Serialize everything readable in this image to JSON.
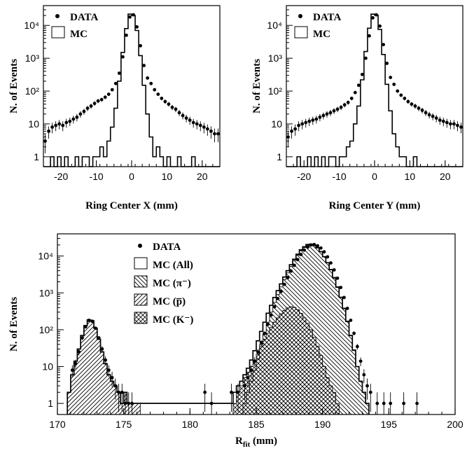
{
  "chart_data": [
    {
      "type": "histogram",
      "panel": "top-left",
      "xlabel": "Ring Center X (mm)",
      "ylabel": "N. of Events",
      "xlim": [
        -25,
        25
      ],
      "ylim_log": [
        0.5,
        40000
      ],
      "y_scale": "log",
      "xticks": [
        -20,
        -10,
        0,
        10,
        20
      ],
      "yticks": [
        {
          "value": 1,
          "label": "1"
        },
        {
          "value": 10,
          "label": "10"
        },
        {
          "value": 100,
          "label": "10²"
        },
        {
          "value": 1000,
          "label": "10³"
        },
        {
          "value": 10000,
          "label": "10⁴"
        }
      ],
      "legend": [
        {
          "symbol": "•",
          "label": "DATA"
        },
        {
          "symbol": "box",
          "label": "MC"
        }
      ],
      "series": [
        {
          "name": "DATA",
          "x": [
            -24.5,
            -23.5,
            -22.5,
            -21.5,
            -20.5,
            -19.5,
            -18.5,
            -17.5,
            -16.5,
            -15.5,
            -14.5,
            -13.5,
            -12.5,
            -11.5,
            -10.5,
            -9.5,
            -8.5,
            -7.5,
            -6.5,
            -5.5,
            -4.5,
            -3.5,
            -2.5,
            -1.5,
            -0.5,
            0.5,
            1.5,
            2.5,
            3.5,
            4.5,
            5.5,
            6.5,
            7.5,
            8.5,
            9.5,
            10.5,
            11.5,
            12.5,
            13.5,
            14.5,
            15.5,
            16.5,
            17.5,
            18.5,
            19.5,
            20.5,
            21.5,
            22.5,
            23.5,
            24.5
          ],
          "values": [
            3,
            6,
            8,
            9,
            10,
            9,
            11,
            12,
            14,
            16,
            20,
            24,
            30,
            35,
            42,
            50,
            55,
            65,
            80,
            110,
            170,
            350,
            1100,
            5000,
            18000,
            21000,
            9000,
            2400,
            600,
            250,
            170,
            110,
            80,
            60,
            48,
            40,
            32,
            28,
            22,
            18,
            15,
            13,
            11,
            10,
            9,
            8,
            7,
            6,
            5,
            5
          ]
        },
        {
          "name": "MC",
          "x": [
            -24.5,
            -23.5,
            -22.5,
            -21.5,
            -20.5,
            -19.5,
            -18.5,
            -17.5,
            -16.5,
            -15.5,
            -14.5,
            -13.5,
            -12.5,
            -11.5,
            -10.5,
            -9.5,
            -8.5,
            -7.5,
            -6.5,
            -5.5,
            -4.5,
            -3.5,
            -2.5,
            -1.5,
            -0.5,
            0.5,
            1.5,
            2.5,
            3.5,
            4.5,
            5.5,
            6.5,
            7.5,
            8.5,
            9.5,
            10.5,
            11.5,
            12.5,
            13.5,
            14.5,
            15.5,
            16.5,
            17.5,
            18.5,
            19.5,
            20.5,
            21.5,
            22.5,
            23.5,
            24.5
          ],
          "values": [
            0,
            0,
            1,
            0,
            1,
            0,
            1,
            0,
            0,
            1,
            0,
            1,
            1,
            0,
            1,
            1,
            2,
            1,
            3,
            8,
            30,
            200,
            1500,
            8000,
            22000,
            20000,
            7000,
            1200,
            150,
            20,
            4,
            1,
            2,
            1,
            0,
            1,
            0,
            0,
            1,
            0,
            0,
            0,
            1,
            0,
            0,
            0,
            0,
            0,
            0,
            0
          ]
        }
      ]
    },
    {
      "type": "histogram",
      "panel": "top-right",
      "xlabel": "Ring Center Y (mm)",
      "ylabel": "N. of Events",
      "xlim": [
        -25,
        25
      ],
      "ylim_log": [
        0.5,
        40000
      ],
      "y_scale": "log",
      "xticks": [
        -20,
        -10,
        0,
        10,
        20
      ],
      "yticks": [
        {
          "value": 1,
          "label": "1"
        },
        {
          "value": 10,
          "label": "10"
        },
        {
          "value": 100,
          "label": "10²"
        },
        {
          "value": 1000,
          "label": "10³"
        },
        {
          "value": 10000,
          "label": "10⁴"
        }
      ],
      "legend": [
        {
          "symbol": "•",
          "label": "DATA"
        },
        {
          "symbol": "box",
          "label": "MC"
        }
      ],
      "series": [
        {
          "name": "DATA",
          "x": [
            -24.5,
            -23.5,
            -22.5,
            -21.5,
            -20.5,
            -19.5,
            -18.5,
            -17.5,
            -16.5,
            -15.5,
            -14.5,
            -13.5,
            -12.5,
            -11.5,
            -10.5,
            -9.5,
            -8.5,
            -7.5,
            -6.5,
            -5.5,
            -4.5,
            -3.5,
            -2.5,
            -1.5,
            -0.5,
            0.5,
            1.5,
            2.5,
            3.5,
            4.5,
            5.5,
            6.5,
            7.5,
            8.5,
            9.5,
            10.5,
            11.5,
            12.5,
            13.5,
            14.5,
            15.5,
            16.5,
            17.5,
            18.5,
            19.5,
            20.5,
            21.5,
            22.5,
            23.5,
            24.5
          ],
          "values": [
            4,
            6,
            7,
            9,
            10,
            11,
            12,
            13,
            14,
            16,
            18,
            20,
            22,
            25,
            28,
            32,
            38,
            45,
            60,
            90,
            150,
            320,
            1000,
            4800,
            17000,
            21000,
            9500,
            2600,
            700,
            260,
            160,
            100,
            75,
            60,
            48,
            40,
            35,
            30,
            26,
            22,
            19,
            17,
            15,
            13,
            12,
            11,
            10,
            10,
            9,
            8
          ]
        },
        {
          "name": "MC",
          "x": [
            -24.5,
            -23.5,
            -22.5,
            -21.5,
            -20.5,
            -19.5,
            -18.5,
            -17.5,
            -16.5,
            -15.5,
            -14.5,
            -13.5,
            -12.5,
            -11.5,
            -10.5,
            -9.5,
            -8.5,
            -7.5,
            -6.5,
            -5.5,
            -4.5,
            -3.5,
            -2.5,
            -1.5,
            -0.5,
            0.5,
            1.5,
            2.5,
            3.5,
            4.5,
            5.5,
            6.5,
            7.5,
            8.5,
            9.5,
            10.5,
            11.5,
            12.5,
            13.5,
            14.5,
            15.5,
            16.5,
            17.5,
            18.5,
            19.5,
            20.5,
            21.5,
            22.5,
            23.5,
            24.5
          ],
          "values": [
            0,
            0,
            0,
            1,
            0,
            0,
            1,
            0,
            1,
            0,
            1,
            0,
            1,
            1,
            0,
            1,
            1,
            2,
            3,
            10,
            35,
            220,
            1600,
            8200,
            22000,
            20500,
            7500,
            1300,
            160,
            25,
            5,
            2,
            1,
            1,
            0,
            0,
            1,
            0,
            0,
            0,
            0,
            0,
            0,
            0,
            0,
            0,
            0,
            0,
            0,
            0
          ]
        }
      ]
    },
    {
      "type": "histogram",
      "panel": "bottom",
      "xlabel": "R",
      "xlabel_sub": "fit",
      "xlabel_unit": " (mm)",
      "ylabel": "N. of Events",
      "xlim": [
        170,
        200
      ],
      "ylim_log": [
        0.5,
        40000
      ],
      "y_scale": "log",
      "xticks": [
        170,
        175,
        180,
        185,
        190,
        195,
        200
      ],
      "yticks": [
        {
          "value": 1,
          "label": "1"
        },
        {
          "value": 10,
          "label": "10"
        },
        {
          "value": 100,
          "label": "10²"
        },
        {
          "value": 1000,
          "label": "10³"
        },
        {
          "value": 10000,
          "label": "10⁴"
        }
      ],
      "bin_width": 0.25,
      "legend": [
        {
          "symbol": "•",
          "label": "DATA"
        },
        {
          "symbol": "box",
          "label": "MC (All)"
        },
        {
          "symbol": "hatch-back",
          "label": "MC (π⁻)"
        },
        {
          "symbol": "hatch-fwd",
          "label": "MC (p̅)"
        },
        {
          "symbol": "cross",
          "label": "MC (K⁻)"
        }
      ],
      "series": [
        {
          "name": "DATA",
          "x": [
            171.125,
            171.375,
            171.625,
            171.875,
            172.125,
            172.375,
            172.625,
            172.875,
            173.125,
            173.375,
            173.625,
            173.875,
            174.125,
            174.375,
            174.625,
            174.875,
            175.125,
            175.375,
            175.625,
            181.125,
            181.625,
            183.125,
            183.625,
            184.125,
            184.375,
            184.625,
            184.875,
            185.125,
            185.375,
            185.625,
            185.875,
            186.125,
            186.375,
            186.625,
            186.875,
            187.125,
            187.375,
            187.625,
            187.875,
            188.125,
            188.375,
            188.625,
            188.875,
            189.125,
            189.375,
            189.625,
            189.875,
            190.125,
            190.375,
            190.625,
            190.875,
            191.125,
            191.375,
            191.625,
            191.875,
            192.125,
            192.375,
            192.625,
            192.875,
            193.125,
            193.375,
            193.625,
            194.125,
            194.625,
            195.125,
            196.125,
            197.125
          ],
          "values": [
            8,
            12,
            25,
            60,
            120,
            180,
            170,
            110,
            60,
            30,
            15,
            8,
            5,
            3,
            2,
            2,
            1,
            1,
            1,
            2,
            1,
            2,
            2,
            3,
            5,
            8,
            14,
            25,
            45,
            80,
            140,
            250,
            420,
            700,
            1100,
            1700,
            2600,
            3900,
            5600,
            8000,
            11000,
            14500,
            17500,
            20000,
            20500,
            19000,
            16500,
            13000,
            9500,
            6500,
            4200,
            2500,
            1400,
            750,
            380,
            180,
            80,
            35,
            14,
            6,
            3,
            2,
            1,
            1,
            1,
            1,
            1
          ]
        },
        {
          "name": "MC (All)",
          "x": [
            170.875,
            171.125,
            171.375,
            171.625,
            171.875,
            172.125,
            172.375,
            172.625,
            172.875,
            173.125,
            173.375,
            173.625,
            173.875,
            174.125,
            174.375,
            174.625,
            174.875,
            175.125,
            175.375,
            175.625,
            175.875,
            176.125,
            183.125,
            183.375,
            183.625,
            183.875,
            184.125,
            184.375,
            184.625,
            184.875,
            185.125,
            185.375,
            185.625,
            185.875,
            186.125,
            186.375,
            186.625,
            186.875,
            187.125,
            187.375,
            187.625,
            187.875,
            188.125,
            188.375,
            188.625,
            188.875,
            189.125,
            189.375,
            189.625,
            189.875,
            190.125,
            190.375,
            190.625,
            190.875,
            191.125,
            191.375,
            191.625,
            191.875,
            192.125,
            192.375,
            192.625,
            192.875,
            193.125,
            193.375
          ],
          "values": [
            2,
            6,
            14,
            30,
            70,
            130,
            185,
            175,
            110,
            55,
            25,
            12,
            6,
            4,
            3,
            2,
            1,
            2,
            1,
            1,
            1,
            1,
            1,
            2,
            3,
            4,
            6,
            9,
            15,
            27,
            50,
            90,
            160,
            280,
            460,
            750,
            1150,
            1750,
            2700,
            4000,
            5800,
            8200,
            11200,
            14800,
            17800,
            20500,
            21000,
            19500,
            16800,
            13200,
            9600,
            6600,
            4300,
            2600,
            1450,
            760,
            380,
            170,
            70,
            28,
            10,
            4,
            2,
            1
          ]
        },
        {
          "name": "MC (π⁻)",
          "x": [
            184.125,
            184.375,
            184.625,
            184.875,
            185.125,
            185.375,
            185.625,
            185.875,
            186.125,
            186.375,
            186.625,
            186.875,
            187.125,
            187.375,
            187.625,
            187.875,
            188.125,
            188.375,
            188.625,
            188.875,
            189.125,
            189.375,
            189.625,
            189.875,
            190.125,
            190.375,
            190.625,
            190.875,
            191.125,
            191.375,
            191.625,
            191.875,
            192.125,
            192.375,
            192.625,
            192.875,
            193.125,
            193.375
          ],
          "values": [
            1,
            2,
            4,
            8,
            16,
            40,
            80,
            160,
            300,
            550,
            900,
            1450,
            2300,
            3500,
            5200,
            7600,
            10500,
            14000,
            17000,
            19800,
            20500,
            19000,
            16500,
            13000,
            9500,
            6500,
            4200,
            2500,
            1400,
            750,
            370,
            165,
            68,
            27,
            10,
            4,
            2,
            1
          ]
        },
        {
          "name": "MC (p̅)",
          "x": [
            170.875,
            171.125,
            171.375,
            171.625,
            171.875,
            172.125,
            172.375,
            172.625,
            172.875,
            173.125,
            173.375,
            173.625,
            173.875,
            174.125,
            174.375,
            174.625,
            174.875,
            175.125,
            175.375,
            175.625,
            175.875,
            176.125
          ],
          "values": [
            2,
            6,
            14,
            30,
            70,
            130,
            185,
            175,
            110,
            55,
            25,
            12,
            6,
            4,
            3,
            2,
            1,
            2,
            1,
            1,
            1,
            1
          ]
        },
        {
          "name": "MC (K⁻)",
          "x": [
            183.375,
            183.625,
            183.875,
            184.125,
            184.375,
            184.625,
            184.875,
            185.125,
            185.375,
            185.625,
            185.875,
            186.125,
            186.375,
            186.625,
            186.875,
            187.125,
            187.375,
            187.625,
            187.875,
            188.125,
            188.375,
            188.625,
            188.875,
            189.125,
            189.375,
            189.625,
            189.875,
            190.125,
            190.375,
            190.625,
            190.875,
            191.125
          ],
          "values": [
            1,
            2,
            3,
            5,
            7,
            10,
            15,
            22,
            35,
            55,
            80,
            115,
            160,
            210,
            270,
            330,
            390,
            420,
            400,
            350,
            280,
            210,
            150,
            100,
            62,
            36,
            20,
            10,
            5,
            3,
            2,
            1
          ]
        }
      ]
    }
  ]
}
